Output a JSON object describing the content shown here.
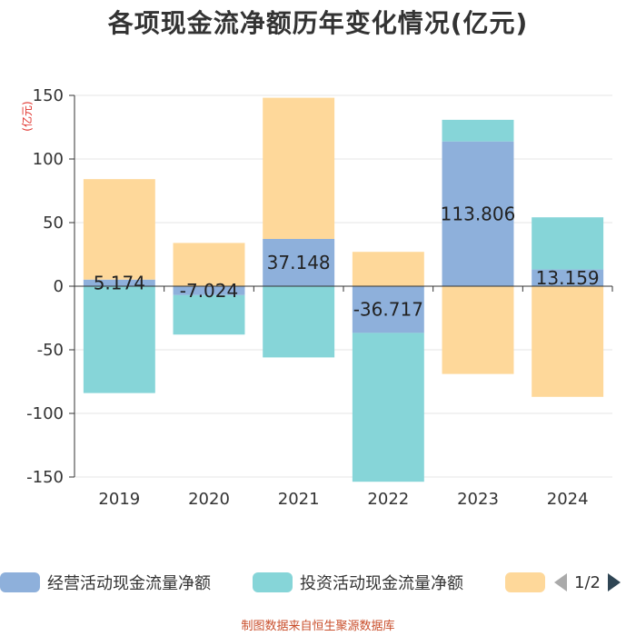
{
  "chart_data": {
    "type": "bar",
    "stacked": true,
    "title": "各项现金流净额历年变化情况(亿元)",
    "ylabel": "(亿元)",
    "categories": [
      "2019",
      "2020",
      "2021",
      "2022",
      "2023",
      "2024"
    ],
    "ylim": [
      -150,
      150
    ],
    "yticks": [
      -150,
      -100,
      -50,
      0,
      50,
      100,
      150
    ],
    "grid": true,
    "series": [
      {
        "name": "经营活动现金流量净额",
        "color": "#8eb0db",
        "values": [
          5.174,
          -7.024,
          37.148,
          -36.717,
          113.806,
          13.159
        ]
      },
      {
        "name": "投资活动现金流量净额",
        "color": "#86d5d8",
        "values": [
          -84,
          -31,
          -56,
          -117,
          17,
          41
        ]
      },
      {
        "name": "",
        "color": "#fed89a",
        "values": [
          79,
          34,
          111,
          27,
          -69,
          -87
        ]
      }
    ],
    "data_labels": [
      "5.174",
      "-7.024",
      "37.148",
      "-36.717",
      "113.806",
      "13.159"
    ]
  },
  "legend": {
    "pager": "1/2"
  },
  "footer": "制图数据来自恒生聚源数据库"
}
